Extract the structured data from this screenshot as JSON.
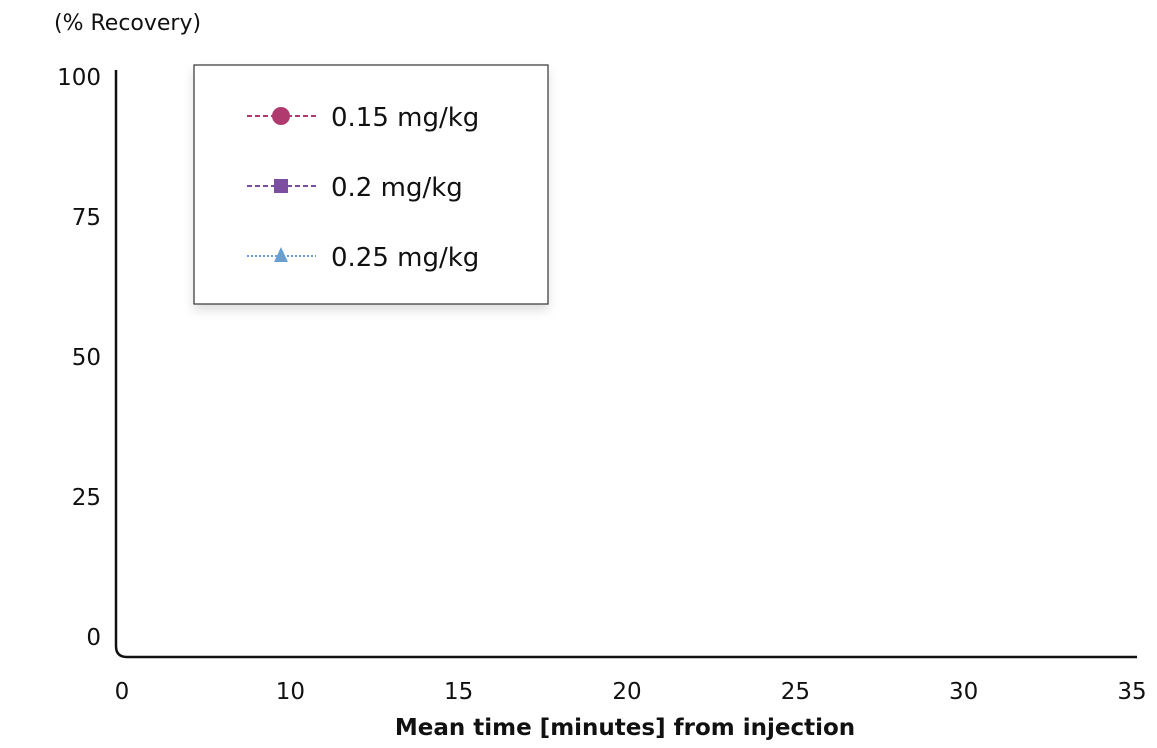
{
  "chart_data": {
    "type": "line",
    "title": "",
    "ylabel": "(% Recovery)",
    "xlabel": "Mean time [minutes] from injection",
    "x_ticks": [
      "0",
      "10",
      "15",
      "20",
      "25",
      "30",
      "35"
    ],
    "y_ticks": [
      "0",
      "25",
      "50",
      "75",
      "100"
    ],
    "ylim": [
      0,
      100
    ],
    "grid": false,
    "legend_position": "top-left",
    "series": [
      {
        "name": "0.15 mg/kg",
        "color": "#b03a6e",
        "marker": "circle",
        "line_style": "dashed",
        "values": []
      },
      {
        "name": "0.2 mg/kg",
        "color": "#7b4ea0",
        "marker": "square",
        "line_style": "dashed",
        "values": []
      },
      {
        "name": "0.25 mg/kg",
        "color": "#6b9fd0",
        "marker": "triangle",
        "line_style": "dotted",
        "values": []
      }
    ]
  }
}
